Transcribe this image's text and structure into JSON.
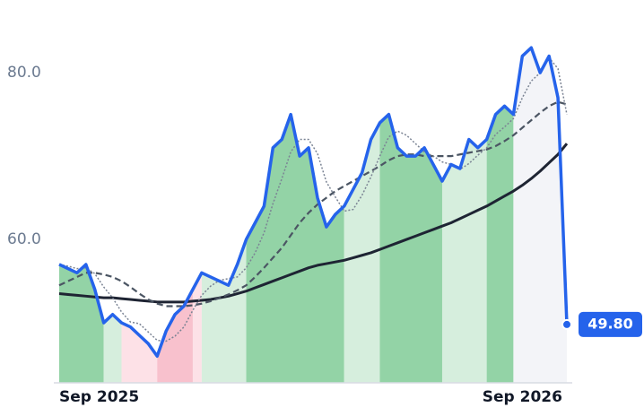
{
  "chart_data": {
    "type": "line",
    "categories": [
      "Sep 2025",
      null,
      null,
      null,
      null,
      null,
      null,
      null,
      null,
      null,
      null,
      null,
      null,
      null,
      null,
      null,
      null,
      null,
      null,
      null,
      null,
      null,
      null,
      null,
      null,
      null,
      null,
      null,
      null,
      null,
      null,
      null,
      null,
      null,
      null,
      null,
      null,
      null,
      null,
      null,
      null,
      null,
      null,
      null,
      null,
      null,
      null,
      null,
      null,
      null,
      null,
      null,
      "Sep 2026",
      null,
      null,
      null,
      null,
      null
    ],
    "series": [
      {
        "color": "#2563eb",
        "values": [
          57,
          56.5,
          56,
          57,
          54,
          50,
          51,
          50,
          49.5,
          48.5,
          47.5,
          46,
          49,
          51,
          52,
          54,
          56,
          55.5,
          55,
          54.5,
          57,
          60,
          62,
          64,
          71,
          72,
          75,
          70,
          71,
          65,
          61.5,
          63,
          64,
          66,
          68,
          72,
          74,
          75,
          71,
          70,
          70,
          71,
          69,
          67,
          69,
          68.5,
          72,
          71,
          72,
          75,
          76,
          75,
          82,
          83,
          80,
          82,
          77,
          49.8
        ],
        "value_labels": [
          null,
          null,
          null,
          null,
          null,
          null,
          null,
          null,
          null,
          null,
          null,
          null,
          null,
          null,
          null,
          null,
          null,
          null,
          null,
          null,
          null,
          null,
          null,
          null,
          null,
          null,
          null,
          null,
          null,
          null,
          null,
          null,
          null,
          null,
          null,
          null,
          null,
          null,
          null,
          null,
          null,
          null,
          null,
          null,
          null,
          null,
          null,
          null,
          null,
          null,
          null,
          null,
          null,
          null,
          null,
          null,
          null,
          "49.80"
        ]
      },
      {
        "color": "#7b8494",
        "style": "dotted",
        "values": [
          57,
          56.8,
          56.5,
          56.6,
          55.9,
          54.3,
          53,
          51.3,
          50.1,
          49.9,
          48.9,
          47.9,
          47.8,
          48.4,
          49.5,
          51.5,
          53.3,
          54.4,
          55.1,
          55.3,
          55.5,
          56.6,
          58.4,
          60.8,
          64.3,
          67.3,
          70.5,
          72,
          72,
          70.3,
          66.9,
          65.1,
          63.4,
          63.6,
          65.3,
          67.5,
          70,
          72.3,
          73,
          72.5,
          71.5,
          70.5,
          70,
          69.3,
          69,
          68.4,
          69.1,
          70.1,
          71,
          72.6,
          73.5,
          74.5,
          77,
          79,
          80,
          81.8,
          80.5,
          75
        ]
      },
      {
        "color": "#4b5563",
        "style": "dashed",
        "values": [
          54.5,
          55,
          55.5,
          56,
          56,
          55.8,
          55.5,
          55,
          54.3,
          53.5,
          52.8,
          52.3,
          52,
          52,
          52,
          52.1,
          52.3,
          52.6,
          53,
          53.4,
          53.9,
          54.5,
          55.5,
          56.6,
          57.8,
          59,
          60.5,
          62,
          63.2,
          64.2,
          65,
          65.8,
          66.4,
          67,
          67.6,
          68.2,
          68.8,
          69.5,
          70,
          70.2,
          70.2,
          70,
          70,
          70,
          70,
          70.2,
          70.4,
          70.6,
          70.8,
          71.2,
          71.8,
          72.5,
          73.4,
          74.3,
          75.2,
          76,
          76.5,
          76.2
        ]
      },
      {
        "color": "#1e2433",
        "style": "solid",
        "values": [
          53.5,
          53.4,
          53.3,
          53.2,
          53.1,
          53,
          53,
          52.9,
          52.8,
          52.7,
          52.6,
          52.5,
          52.5,
          52.5,
          52.5,
          52.6,
          52.7,
          52.8,
          53,
          53.2,
          53.5,
          53.8,
          54.2,
          54.6,
          55,
          55.4,
          55.8,
          56.2,
          56.6,
          56.9,
          57.1,
          57.3,
          57.5,
          57.8,
          58.1,
          58.4,
          58.8,
          59.2,
          59.6,
          60,
          60.4,
          60.8,
          61.2,
          61.6,
          62,
          62.5,
          63,
          63.5,
          64,
          64.6,
          65.2,
          65.8,
          66.5,
          67.3,
          68.2,
          69.2,
          70.2,
          71.5
        ]
      }
    ],
    "bands": [
      {
        "start": 0,
        "end": 5,
        "color": "#93d3a6"
      },
      {
        "start": 5,
        "end": 7,
        "color": "#d6eedd"
      },
      {
        "start": 7,
        "end": 11,
        "color": "#fde1e7"
      },
      {
        "start": 11,
        "end": 15,
        "color": "#f8c1cd"
      },
      {
        "start": 15,
        "end": 16,
        "color": "#fde1e7"
      },
      {
        "start": 16,
        "end": 21,
        "color": "#d6eedd"
      },
      {
        "start": 21,
        "end": 32,
        "color": "#93d3a6"
      },
      {
        "start": 32,
        "end": 36,
        "color": "#d6eedd"
      },
      {
        "start": 36,
        "end": 43,
        "color": "#93d3a6"
      },
      {
        "start": 43,
        "end": 48,
        "color": "#d6eedd"
      },
      {
        "start": 48,
        "end": 51,
        "color": "#93d3a6"
      },
      {
        "start": 51,
        "end": 57,
        "color": "#f3f4f8"
      }
    ],
    "ylim": [
      42.8,
      85.5
    ],
    "yticks": [
      {
        "value": 60,
        "label": "60.0"
      },
      {
        "value": 80,
        "label": "80.0"
      }
    ]
  }
}
